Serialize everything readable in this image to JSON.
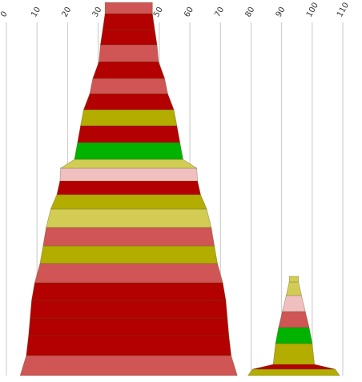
{
  "chart_data": {
    "type": "bar",
    "orientation": "horizontal-stacked-funnel",
    "title": "",
    "xlabel": "",
    "ylabel": "",
    "xlim": [
      0,
      110
    ],
    "x_ticks": [
      0,
      10,
      20,
      30,
      40,
      50,
      60,
      70,
      80,
      90,
      100,
      110
    ],
    "x_tick_labels": [
      "0",
      "10",
      "20",
      "30",
      "40",
      "50",
      "60",
      "70",
      "80",
      "90",
      "100",
      "110"
    ],
    "grid": "vertical",
    "palette": {
      "dark_red": "#b30000",
      "salmon": "#d05555",
      "olive": "#b3ad00",
      "khaki": "#d2cc55",
      "green": "#00b300",
      "pink": "#f0c0c0"
    },
    "series": [
      {
        "center": 40,
        "bands": [
          {
            "bottom": 0,
            "top": 25,
            "width": 71,
            "color": "salmon"
          },
          {
            "bottom": 25,
            "top": 50,
            "width": 67,
            "color": "dark_red"
          },
          {
            "bottom": 50,
            "top": 72,
            "width": 65.5,
            "color": "dark_red"
          },
          {
            "bottom": 72,
            "top": 94,
            "width": 64.5,
            "color": "dark_red"
          },
          {
            "bottom": 94,
            "top": 116,
            "width": 63.5,
            "color": "dark_red"
          },
          {
            "bottom": 116,
            "top": 140,
            "width": 61.5,
            "color": "salmon"
          },
          {
            "bottom": 140,
            "top": 162,
            "width": 58,
            "color": "olive"
          },
          {
            "bottom": 162,
            "top": 185,
            "width": 56,
            "color": "salmon"
          },
          {
            "bottom": 185,
            "top": 208,
            "width": 54,
            "color": "khaki"
          },
          {
            "bottom": 208,
            "top": 226,
            "width": 51,
            "color": "olive"
          },
          {
            "bottom": 226,
            "top": 243,
            "width": 47,
            "color": "dark_red"
          },
          {
            "bottom": 243,
            "top": 259,
            "width": 45,
            "color": "pink"
          },
          {
            "bottom": 259,
            "top": 270,
            "width": 44.5,
            "color": "khaki"
          },
          {
            "bottom": 270,
            "top": 291,
            "width": 35.5,
            "color": "green"
          },
          {
            "bottom": 291,
            "top": 312,
            "width": 33.5,
            "color": "dark_red"
          },
          {
            "bottom": 312,
            "top": 332,
            "width": 31.5,
            "color": "olive"
          },
          {
            "bottom": 332,
            "top": 352,
            "width": 29.5,
            "color": "dark_red"
          },
          {
            "bottom": 352,
            "top": 371,
            "width": 25.5,
            "color": "salmon"
          },
          {
            "bottom": 371,
            "top": 392,
            "width": 23.5,
            "color": "dark_red"
          },
          {
            "bottom": 392,
            "top": 413,
            "width": 19.5,
            "color": "salmon"
          },
          {
            "bottom": 413,
            "top": 432,
            "width": 18.5,
            "color": "dark_red"
          },
          {
            "bottom": 432,
            "top": 452,
            "width": 17,
            "color": "dark_red"
          },
          {
            "bottom": 452,
            "top": 466,
            "width": 15.5,
            "color": "salmon"
          }
        ]
      },
      {
        "center": 94,
        "bands": [
          {
            "bottom": 0,
            "top": 8,
            "width": 30,
            "color": "olive"
          },
          {
            "bottom": 8,
            "top": 14,
            "width": 27,
            "color": "dark_red"
          },
          {
            "bottom": 14,
            "top": 40,
            "width": 13.5,
            "color": "olive"
          },
          {
            "bottom": 40,
            "top": 60,
            "width": 12,
            "color": "green"
          },
          {
            "bottom": 60,
            "top": 80,
            "width": 10,
            "color": "salmon"
          },
          {
            "bottom": 80,
            "top": 100,
            "width": 7.5,
            "color": "pink"
          },
          {
            "bottom": 100,
            "top": 117,
            "width": 5,
            "color": "khaki"
          },
          {
            "bottom": 117,
            "top": 124,
            "width": 3,
            "color": "khaki"
          }
        ]
      }
    ]
  }
}
